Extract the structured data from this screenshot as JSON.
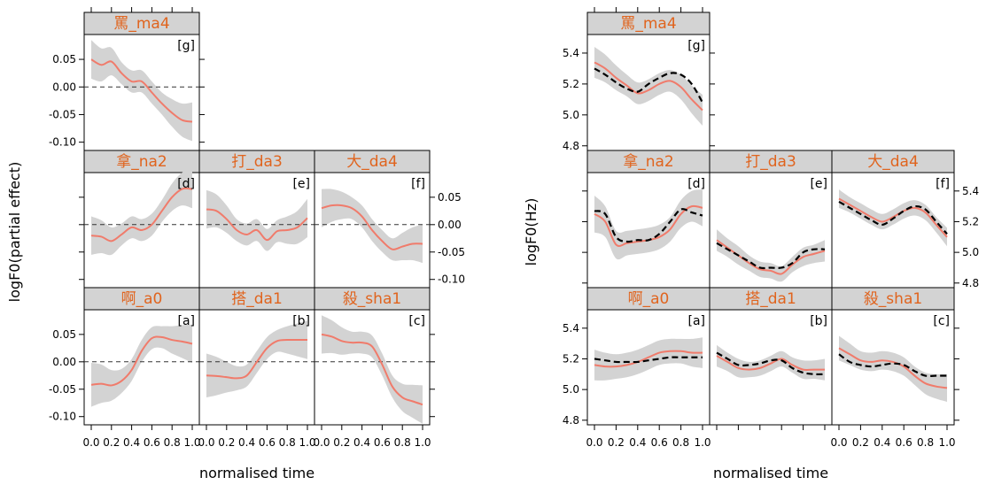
{
  "chart_data": [
    {
      "type": "line",
      "xlabel": "normalised time",
      "ylabel": "logF0(partial effect)",
      "xticks": [
        "0.0",
        "0.2",
        "0.4",
        "0.6",
        "0.8",
        "1.0"
      ],
      "yticks": [
        "0.05",
        "0.00",
        "-0.05",
        "-0.10"
      ],
      "ylim": [
        -0.115,
        0.095
      ],
      "xlim": [
        0,
        1
      ],
      "reference_line": 0,
      "colors": {
        "fit": "#f07b6b",
        "ci": "#d3d3d3",
        "strip": "#d3d3d3",
        "title": "#e0641e",
        "ref": "#333333"
      },
      "panels": [
        {
          "id": "g",
          "title": "罵_ma4",
          "tag": "[g]",
          "row": 0,
          "col": 0,
          "fit": [
            0.05,
            0.04,
            0.046,
            0.025,
            0.01,
            0.01,
            -0.01,
            -0.03,
            -0.047,
            -0.06,
            -0.063
          ],
          "ci": [
            0.035,
            0.03,
            0.025,
            0.02,
            0.02,
            0.02,
            0.02,
            0.02,
            0.025,
            0.03,
            0.035
          ]
        },
        {
          "id": "d",
          "title": "拿_na2",
          "tag": "[d]",
          "row": 1,
          "col": 0,
          "fit": [
            -0.02,
            -0.022,
            -0.03,
            -0.018,
            -0.005,
            -0.01,
            0.0,
            0.025,
            0.05,
            0.065,
            0.065
          ],
          "ci": [
            0.035,
            0.03,
            0.025,
            0.02,
            0.02,
            0.02,
            0.02,
            0.02,
            0.025,
            0.03,
            0.035
          ]
        },
        {
          "id": "e",
          "title": "打_da3",
          "tag": "[e]",
          "row": 1,
          "col": 1,
          "fit": [
            0.028,
            0.025,
            0.01,
            -0.01,
            -0.018,
            -0.01,
            -0.028,
            -0.012,
            -0.01,
            -0.005,
            0.012
          ],
          "ci": [
            0.035,
            0.03,
            0.025,
            0.02,
            0.02,
            0.02,
            0.02,
            0.02,
            0.025,
            0.03,
            0.035
          ]
        },
        {
          "id": "f",
          "title": "大_da4",
          "tag": "[f]",
          "row": 1,
          "col": 2,
          "fit": [
            0.03,
            0.035,
            0.035,
            0.03,
            0.015,
            -0.01,
            -0.03,
            -0.045,
            -0.04,
            -0.035,
            -0.035
          ],
          "ci": [
            0.035,
            0.03,
            0.025,
            0.02,
            0.02,
            0.02,
            0.02,
            0.02,
            0.025,
            0.03,
            0.035
          ]
        },
        {
          "id": "a",
          "title": "啊_a0",
          "tag": "[a]",
          "row": 2,
          "col": 0,
          "fit": [
            -0.042,
            -0.04,
            -0.043,
            -0.035,
            -0.015,
            0.02,
            0.043,
            0.045,
            0.04,
            0.037,
            0.033
          ],
          "ci": [
            0.04,
            0.035,
            0.028,
            0.022,
            0.02,
            0.02,
            0.02,
            0.02,
            0.025,
            0.03,
            0.035
          ]
        },
        {
          "id": "b",
          "title": "搭_da1",
          "tag": "[b]",
          "row": 2,
          "col": 1,
          "fit": [
            -0.025,
            -0.026,
            -0.028,
            -0.03,
            -0.025,
            0.0,
            0.025,
            0.038,
            0.04,
            0.04,
            0.04
          ],
          "ci": [
            0.04,
            0.035,
            0.028,
            0.022,
            0.02,
            0.02,
            0.02,
            0.02,
            0.025,
            0.03,
            0.035
          ]
        },
        {
          "id": "c",
          "title": "殺_sha1",
          "tag": "[c]",
          "row": 2,
          "col": 2,
          "fit": [
            0.05,
            0.046,
            0.038,
            0.035,
            0.035,
            0.028,
            -0.005,
            -0.045,
            -0.065,
            -0.072,
            -0.078
          ],
          "ci": [
            0.035,
            0.03,
            0.025,
            0.02,
            0.02,
            0.02,
            0.02,
            0.02,
            0.025,
            0.03,
            0.035
          ]
        }
      ]
    },
    {
      "type": "line",
      "xlabel": "normalised time",
      "ylabel": "logF0(Hz)",
      "xticks": [
        "0.0",
        "0.2",
        "0.4",
        "0.6",
        "0.8",
        "1.0"
      ],
      "yticks": [
        "5.4",
        "5.2",
        "5.0",
        "4.8"
      ],
      "ylim": [
        4.77,
        5.52
      ],
      "xlim": [
        0,
        1
      ],
      "colors": {
        "fit": "#f07b6b",
        "ci": "#d3d3d3",
        "strip": "#d3d3d3",
        "title": "#e0641e",
        "observed": "#000000"
      },
      "panels": [
        {
          "id": "g",
          "title": "罵_ma4",
          "tag": "[g]",
          "row": 0,
          "col": 0,
          "fit": [
            5.34,
            5.3,
            5.24,
            5.19,
            5.14,
            5.16,
            5.2,
            5.22,
            5.18,
            5.1,
            5.03
          ],
          "observed": [
            5.3,
            5.26,
            5.21,
            5.17,
            5.15,
            5.2,
            5.24,
            5.27,
            5.26,
            5.2,
            5.08
          ],
          "ci": [
            0.1,
            0.09,
            0.08,
            0.07,
            0.07,
            0.07,
            0.07,
            0.07,
            0.08,
            0.09,
            0.1
          ]
        },
        {
          "id": "d",
          "title": "拿_na2",
          "tag": "[d]",
          "row": 1,
          "col": 0,
          "fit": [
            5.25,
            5.2,
            5.05,
            5.06,
            5.07,
            5.08,
            5.1,
            5.15,
            5.25,
            5.3,
            5.29
          ],
          "observed": [
            5.27,
            5.25,
            5.1,
            5.07,
            5.08,
            5.08,
            5.12,
            5.2,
            5.28,
            5.26,
            5.24
          ],
          "ci": [
            0.12,
            0.1,
            0.09,
            0.08,
            0.08,
            0.08,
            0.08,
            0.08,
            0.09,
            0.1,
            0.12
          ]
        },
        {
          "id": "e",
          "title": "打_da3",
          "tag": "[e]",
          "row": 1,
          "col": 1,
          "fit": [
            5.08,
            5.03,
            4.98,
            4.93,
            4.89,
            4.88,
            4.86,
            4.92,
            4.97,
            4.99,
            5.01
          ],
          "observed": [
            5.06,
            5.02,
            4.98,
            4.94,
            4.9,
            4.9,
            4.9,
            4.93,
            5.0,
            5.02,
            5.02
          ],
          "ci": [
            0.07,
            0.06,
            0.06,
            0.05,
            0.05,
            0.05,
            0.05,
            0.05,
            0.06,
            0.06,
            0.07
          ]
        },
        {
          "id": "f",
          "title": "大_da4",
          "tag": "[f]",
          "row": 1,
          "col": 2,
          "fit": [
            5.35,
            5.31,
            5.27,
            5.23,
            5.2,
            5.23,
            5.27,
            5.29,
            5.26,
            5.18,
            5.1
          ],
          "observed": [
            5.33,
            5.29,
            5.25,
            5.21,
            5.18,
            5.22,
            5.27,
            5.3,
            5.28,
            5.2,
            5.12
          ],
          "ci": [
            0.06,
            0.05,
            0.05,
            0.05,
            0.05,
            0.05,
            0.05,
            0.05,
            0.05,
            0.05,
            0.06
          ]
        },
        {
          "id": "a",
          "title": "啊_a0",
          "tag": "[a]",
          "row": 2,
          "col": 0,
          "fit": [
            5.16,
            5.15,
            5.15,
            5.16,
            5.18,
            5.21,
            5.24,
            5.25,
            5.25,
            5.24,
            5.24
          ],
          "observed": [
            5.2,
            5.19,
            5.18,
            5.18,
            5.18,
            5.19,
            5.2,
            5.21,
            5.21,
            5.21,
            5.21
          ],
          "ci": [
            0.1,
            0.09,
            0.08,
            0.08,
            0.08,
            0.08,
            0.08,
            0.08,
            0.08,
            0.09,
            0.1
          ]
        },
        {
          "id": "b",
          "title": "搭_da1",
          "tag": "[b]",
          "row": 2,
          "col": 1,
          "fit": [
            5.22,
            5.18,
            5.14,
            5.13,
            5.14,
            5.17,
            5.2,
            5.16,
            5.13,
            5.13,
            5.13
          ],
          "observed": [
            5.24,
            5.2,
            5.16,
            5.16,
            5.17,
            5.19,
            5.19,
            5.14,
            5.11,
            5.1,
            5.1
          ],
          "ci": [
            0.07,
            0.06,
            0.06,
            0.05,
            0.05,
            0.05,
            0.05,
            0.05,
            0.06,
            0.06,
            0.07
          ]
        },
        {
          "id": "c",
          "title": "殺_sha1",
          "tag": "[c]",
          "row": 2,
          "col": 2,
          "fit": [
            5.27,
            5.23,
            5.19,
            5.18,
            5.19,
            5.18,
            5.15,
            5.09,
            5.04,
            5.02,
            5.01
          ],
          "observed": [
            5.23,
            5.18,
            5.16,
            5.15,
            5.16,
            5.17,
            5.16,
            5.12,
            5.09,
            5.09,
            5.09
          ],
          "ci": [
            0.08,
            0.07,
            0.06,
            0.06,
            0.06,
            0.06,
            0.06,
            0.06,
            0.07,
            0.08,
            0.09
          ]
        }
      ]
    }
  ]
}
